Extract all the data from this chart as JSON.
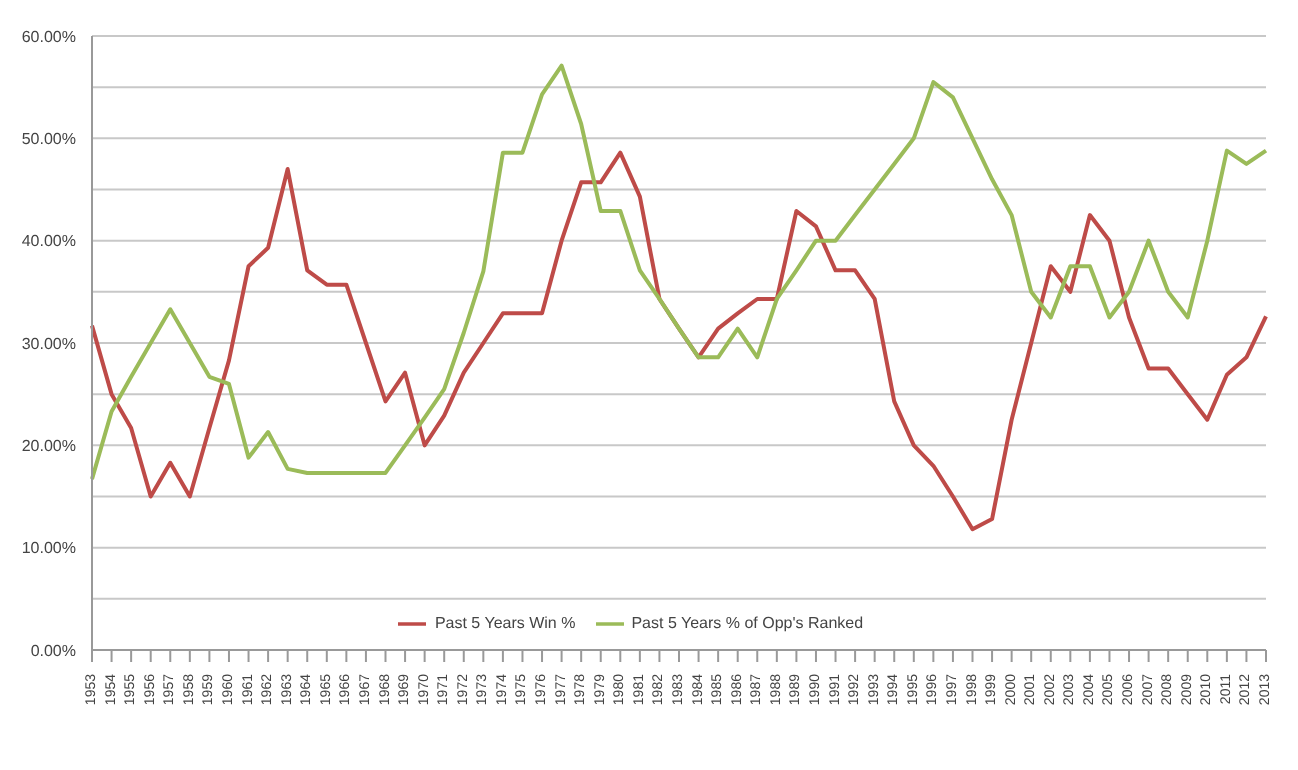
{
  "chart_data": {
    "type": "line",
    "categories": [
      "1953",
      "1954",
      "1955",
      "1956",
      "1957",
      "1958",
      "1959",
      "1960",
      "1961",
      "1962",
      "1963",
      "1964",
      "1965",
      "1966",
      "1967",
      "1968",
      "1969",
      "1970",
      "1971",
      "1972",
      "1973",
      "1974",
      "1975",
      "1976",
      "1977",
      "1978",
      "1979",
      "1980",
      "1981",
      "1982",
      "1983",
      "1984",
      "1985",
      "1986",
      "1987",
      "1988",
      "1989",
      "1990",
      "1991",
      "1992",
      "1993",
      "1994",
      "1995",
      "1996",
      "1997",
      "1998",
      "1999",
      "2000",
      "2001",
      "2002",
      "2003",
      "2004",
      "2005",
      "2006",
      "2007",
      "2008",
      "2009",
      "2010",
      "2011",
      "2012",
      "2013"
    ],
    "series": [
      {
        "name": "Past 5 Years Win %",
        "color": "#be4b48",
        "values": [
          31.7,
          25,
          21.7,
          15,
          18.3,
          15,
          21.7,
          28.3,
          37.5,
          39.3,
          47,
          37.1,
          35.7,
          35.7,
          30,
          24.3,
          27.1,
          20,
          22.9,
          27.1,
          30,
          32.9,
          32.9,
          32.9,
          40,
          45.7,
          45.7,
          48.6,
          44.3,
          34.3,
          31.4,
          28.6,
          31.4,
          32.9,
          34.3,
          34.3,
          42.9,
          41.4,
          37.1,
          37.1,
          34.3,
          24.3,
          20,
          18,
          15,
          11.8,
          12.8,
          22.5,
          30,
          37.5,
          35,
          42.5,
          40,
          32.5,
          27.5,
          27.5,
          25,
          22.5,
          26.9,
          28.6,
          32.6
        ]
      },
      {
        "name": "Past 5 Years % of Opp's Ranked",
        "color": "#9bbb59",
        "values": [
          16.7,
          23.3,
          26.7,
          30,
          33.3,
          30,
          26.7,
          26,
          18.8,
          21.3,
          17.7,
          17.3,
          17.3,
          17.3,
          17.3,
          17.3,
          20,
          22.7,
          25.5,
          31,
          37,
          48.6,
          48.6,
          54.3,
          57.1,
          51.4,
          42.9,
          42.9,
          37.1,
          34.3,
          31.4,
          28.6,
          28.6,
          31.4,
          28.6,
          34.3,
          37.1,
          40,
          40,
          42.5,
          45,
          47.5,
          50,
          55.5,
          54,
          50,
          46,
          42.5,
          35,
          32.5,
          37.5,
          37.5,
          32.5,
          35,
          40,
          35,
          32.5,
          40,
          48.8,
          47.5,
          48.8
        ]
      }
    ],
    "ylim": [
      0,
      60
    ],
    "yticks": [
      {
        "value": 0,
        "label": "0.00%"
      },
      {
        "value": 5,
        "label": null
      },
      {
        "value": 10,
        "label": "10.00%"
      },
      {
        "value": 15,
        "label": null
      },
      {
        "value": 20,
        "label": "20.00%"
      },
      {
        "value": 25,
        "label": null
      },
      {
        "value": 30,
        "label": "30.00%"
      },
      {
        "value": 35,
        "label": null
      },
      {
        "value": 40,
        "label": "40.00%"
      },
      {
        "value": 45,
        "label": null
      },
      {
        "value": 50,
        "label": "50.00%"
      },
      {
        "value": 55,
        "label": null
      },
      {
        "value": 60,
        "label": "60.00%"
      }
    ],
    "grid": "y",
    "legend": "bottom",
    "marker": "none",
    "line_style": "solid"
  }
}
